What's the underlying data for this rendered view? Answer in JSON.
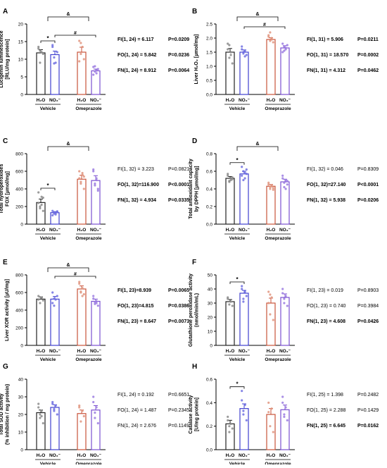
{
  "figure": {
    "bottom_labels": {
      "h2o": "H₂O",
      "no2": "NO₂⁻"
    },
    "groups": [
      "Vehicle",
      "Omeprazole"
    ]
  },
  "colors": {
    "vehicle_h2o": "#222222",
    "vehicle_no2": "#3f3fcf",
    "omep_h2o": "#c9533a",
    "omep_no2": "#7a4fd0",
    "pt_vehicle_h2o": "#8a8a8a",
    "pt_vehicle_no2": "#6f6fe0",
    "pt_omep_h2o": "#e0957f",
    "pt_omep_no2": "#9b7be0"
  },
  "chart_data": [
    {
      "panel": "A",
      "type": "bar",
      "ylabel": "Lucigenin luminescence\n[RLU/mg protein]",
      "ylim": [
        0,
        20
      ],
      "yticks": [
        0,
        5,
        10,
        15,
        20
      ],
      "categories": [
        "H₂O",
        "NO₂⁻",
        "H₂O",
        "NO₂⁻"
      ],
      "groups": [
        "Vehicle",
        "Omeprazole"
      ],
      "values": [
        11.8,
        11.3,
        12.0,
        6.7
      ],
      "errors": [
        0.9,
        1.0,
        1.4,
        0.5
      ],
      "points": [
        [
          13.5,
          9.0,
          12.0,
          11.5,
          13.0,
          12.4
        ],
        [
          14.0,
          10.5,
          9.0,
          12.0,
          13.5,
          8.8
        ],
        [
          15.2,
          11.5,
          13.5,
          10.0,
          9.4,
          14.6
        ],
        [
          7.8,
          6.5,
          6.0,
          7.2,
          5.6,
          8.0,
          6.8
        ]
      ],
      "sig_marks": [
        "&",
        "*",
        "#"
      ],
      "stats": [
        {
          "label": "FI(1, 24) = 6.117",
          "p": "P=0.0209",
          "bold": true
        },
        {
          "label": "FO(1, 24) = 5.842",
          "p": "P=0.0236",
          "bold": true
        },
        {
          "label": "FN(1, 24) = 8.912",
          "p": "P=0.0064",
          "bold": true
        }
      ]
    },
    {
      "panel": "B",
      "type": "bar",
      "ylabel": "Liver H₂O₂ [µmol/mg]",
      "ylim": [
        0,
        2.5
      ],
      "yticks": [
        0.0,
        0.5,
        1.0,
        1.5,
        2.0,
        2.5
      ],
      "categories": [
        "H₂O",
        "NO₂⁻",
        "H₂O",
        "NO₂⁻"
      ],
      "groups": [
        "Vehicle",
        "Omeprazole"
      ],
      "values": [
        1.5,
        1.5,
        1.95,
        1.65
      ],
      "errors": [
        0.13,
        0.08,
        0.06,
        0.08
      ],
      "points": [
        [
          1.8,
          1.3,
          1.5,
          1.1,
          1.6,
          1.75,
          1.4
        ],
        [
          1.6,
          1.45,
          1.55,
          1.4,
          1.7,
          1.5,
          1.35
        ],
        [
          2.1,
          1.9,
          2.0,
          1.85,
          2.05,
          2.2,
          1.95
        ],
        [
          1.8,
          1.55,
          1.6,
          1.75,
          1.5,
          1.7,
          1.65
        ]
      ],
      "sig_marks": [
        "&",
        "#"
      ],
      "stats": [
        {
          "label": "FI(1, 31) = 5.906",
          "p": "P=0.0211",
          "bold": true
        },
        {
          "label": "FO(1, 31) = 18.570",
          "p": "P=0.0002",
          "bold": true
        },
        {
          "label": "FN(1, 31) = 4.312",
          "p": "P=0.0462",
          "bold": true
        }
      ]
    },
    {
      "panel": "C",
      "type": "bar",
      "ylabel": "Total hydroperoxides\nFOX [µmol/mg]",
      "ylim": [
        0,
        800
      ],
      "yticks": [
        0,
        200,
        400,
        600,
        800
      ],
      "categories": [
        "H₂O",
        "NO₂⁻",
        "H₂O",
        "NO₂⁻"
      ],
      "groups": [
        "Vehicle",
        "Omeprazole"
      ],
      "values": [
        245,
        130,
        510,
        495
      ],
      "errors": [
        40,
        12,
        45,
        55
      ],
      "points": [
        [
          360,
          200,
          310,
          150,
          240,
          180,
          220,
          300
        ],
        [
          150,
          120,
          110,
          140,
          100,
          135,
          125,
          145
        ],
        [
          600,
          480,
          560,
          400,
          520,
          460,
          580,
          540
        ],
        [
          620,
          460,
          520,
          380,
          600,
          440,
          500,
          400
        ]
      ],
      "sig_marks": [
        "&",
        "*"
      ],
      "stats": [
        {
          "label": "FI(1, 32) = 3.223",
          "p": "P=0.0821",
          "bold": false
        },
        {
          "label": "FO(1, 32)=116.900",
          "p": "P<0.0001",
          "bold": true
        },
        {
          "label": "FN(1, 32) = 4.934",
          "p": "P=0.0335",
          "bold": true
        }
      ]
    },
    {
      "panel": "D",
      "type": "bar",
      "ylabel": "Total antioxidant capacity\nby DPPH [µmol/mg]",
      "ylim": [
        0,
        0.8
      ],
      "yticks": [
        0.0,
        0.2,
        0.4,
        0.6,
        0.8
      ],
      "categories": [
        "H₂O",
        "NO₂⁻",
        "H₂O",
        "NO₂⁻"
      ],
      "groups": [
        "Vehicle",
        "Omeprazole"
      ],
      "values": [
        0.52,
        0.57,
        0.43,
        0.48
      ],
      "errors": [
        0.02,
        0.03,
        0.02,
        0.03
      ],
      "points": [
        [
          0.55,
          0.48,
          0.5,
          0.53,
          0.57,
          0.49,
          0.52,
          0.51
        ],
        [
          0.65,
          0.5,
          0.58,
          0.62,
          0.55,
          0.6,
          0.52,
          0.57
        ],
        [
          0.45,
          0.4,
          0.43,
          0.39,
          0.47,
          0.42,
          0.44,
          0.41
        ],
        [
          0.55,
          0.42,
          0.5,
          0.45,
          0.52,
          0.47,
          0.4,
          0.49
        ]
      ],
      "sig_marks": [
        "&",
        "*"
      ],
      "stats": [
        {
          "label": "FI(1, 32) = 0.046",
          "p": "P=0.8309",
          "bold": false
        },
        {
          "label": "FO(1, 32)=27.140",
          "p": "P<0.0001",
          "bold": true
        },
        {
          "label": "FN(1, 32) = 5.938",
          "p": "P=0.0206",
          "bold": true
        }
      ]
    },
    {
      "panel": "E",
      "type": "bar",
      "ylabel": "Liver XOR activity [µU/mg]",
      "ylim": [
        0,
        800
      ],
      "yticks": [
        0,
        200,
        400,
        600,
        800
      ],
      "categories": [
        "H₂O",
        "NO₂⁻",
        "H₂O",
        "NO₂⁻"
      ],
      "groups": [
        "Vehicle",
        "Omeprazole"
      ],
      "values": [
        525,
        525,
        640,
        500
      ],
      "errors": [
        25,
        30,
        35,
        25
      ],
      "points": [
        [
          560,
          480,
          540,
          510,
          520
        ],
        [
          600,
          450,
          520,
          560,
          480,
          530
        ],
        [
          720,
          600,
          650,
          580,
          700,
          610,
          560
        ],
        [
          560,
          470,
          500,
          450,
          530,
          490,
          480
        ]
      ],
      "sig_marks": [
        "&",
        "#"
      ],
      "stats": [
        {
          "label": "FI(1, 23)=8.939",
          "p": "P=0.0065",
          "bold": true
        },
        {
          "label": "FO(1, 23)=4.815",
          "p": "P=0.0386",
          "bold": true
        },
        {
          "label": "FN(1, 23) = 8.647",
          "p": "P=0.0073",
          "bold": true
        }
      ]
    },
    {
      "panel": "F",
      "type": "bar",
      "ylabel": "Glutathione peroxidase activity\n(nmol/min/mL)",
      "ylim": [
        0,
        50
      ],
      "yticks": [
        0,
        10,
        20,
        30,
        40,
        50
      ],
      "categories": [
        "H₂O",
        "NO₂⁻",
        "H₂O",
        "NO₂⁻"
      ],
      "groups": [
        "Vehicle",
        "Omeprazole"
      ],
      "values": [
        31,
        37,
        30,
        34
      ],
      "errors": [
        1.5,
        2.0,
        3.5,
        2.5
      ],
      "points": [
        [
          33,
          29,
          31,
          28,
          34
        ],
        [
          42,
          33,
          38,
          35,
          40,
          31
        ],
        [
          38,
          22,
          34,
          18,
          30,
          36
        ],
        [
          40,
          30,
          35,
          28,
          37,
          33
        ]
      ],
      "sig_marks": [
        "*"
      ],
      "stats": [
        {
          "label": "FI(1, 23) = 0.019",
          "p": "P=0.8903",
          "bold": false
        },
        {
          "label": "FO(1, 23) = 0.740",
          "p": "P=0.3984",
          "bold": false
        },
        {
          "label": "FN(1, 23) = 4.608",
          "p": "P=0.0426",
          "bold": true
        }
      ]
    },
    {
      "panel": "G",
      "type": "bar",
      "ylabel": "Total SOD activity\n(% inhibition / mg protein)",
      "ylim": [
        0,
        40
      ],
      "yticks": [
        0,
        10,
        20,
        30,
        40
      ],
      "categories": [
        "H₂O",
        "NO₂⁻",
        "H₂O",
        "NO₂⁻"
      ],
      "groups": [
        "Vehicle",
        "Omeprazole"
      ],
      "values": [
        21,
        24,
        20.5,
        22.5
      ],
      "errors": [
        1.5,
        1.5,
        2.0,
        2.5
      ],
      "points": [
        [
          26,
          18,
          22,
          15,
          24,
          20,
          19
        ],
        [
          27,
          22,
          25,
          20,
          26,
          23
        ],
        [
          25,
          16,
          22,
          19,
          24
        ],
        [
          30,
          18,
          24,
          15,
          27,
          21
        ]
      ],
      "sig_marks": [],
      "stats": [
        {
          "label": "FI(1, 24) = 0.192",
          "p": "P=0.6651",
          "bold": false
        },
        {
          "label": "FO(1, 24) = 1.487",
          "p": "P=0.2345",
          "bold": false
        },
        {
          "label": "FN(1, 24) = 2.676",
          "p": "P=0.1149",
          "bold": false
        }
      ]
    },
    {
      "panel": "H",
      "type": "bar",
      "ylabel": "Catalase activity\n[U/mg protein]",
      "ylim": [
        0,
        0.6
      ],
      "yticks": [
        0.0,
        0.2,
        0.4,
        0.6
      ],
      "categories": [
        "H₂O",
        "NO₂⁻",
        "H₂O",
        "NO₂⁻"
      ],
      "groups": [
        "Vehicle",
        "Omeprazole"
      ],
      "values": [
        0.22,
        0.35,
        0.3,
        0.34
      ],
      "errors": [
        0.03,
        0.04,
        0.05,
        0.04
      ],
      "points": [
        [
          0.28,
          0.15,
          0.22,
          0.18,
          0.25,
          0.2
        ],
        [
          0.5,
          0.3,
          0.38,
          0.25,
          0.42,
          0.33
        ],
        [
          0.4,
          0.2,
          0.35,
          0.15,
          0.32
        ],
        [
          0.45,
          0.28,
          0.36,
          0.25,
          0.4,
          0.3
        ]
      ],
      "sig_marks": [
        "*"
      ],
      "stats": [
        {
          "label": "FI(1, 25) = 1.398",
          "p": "P=0.2482",
          "bold": false
        },
        {
          "label": "FO(1, 25) = 2.288",
          "p": "P=0.1429",
          "bold": false
        },
        {
          "label": "FN(1, 25) = 6.645",
          "p": "P=0.0162",
          "bold": true
        }
      ]
    }
  ]
}
